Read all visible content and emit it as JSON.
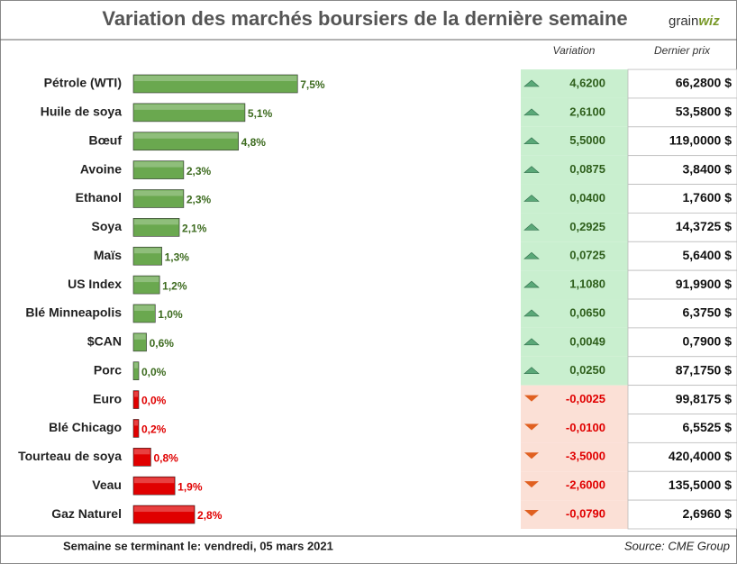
{
  "chart_data": {
    "type": "bar",
    "orientation": "horizontal",
    "title": "Variation des marchés boursiers de la dernière semaine",
    "logo": [
      "grain",
      "wiz"
    ],
    "categories": [
      "Pétrole (WTI)",
      "Huile de soya",
      "Bœuf",
      "Avoine",
      "Ethanol",
      "Soya",
      "Maïs",
      "US Index",
      "Blé Minneapolis",
      "$CAN",
      "Porc",
      "Euro",
      "Blé Chicago",
      "Tourteau de soya",
      "Veau",
      "Gaz Naturel"
    ],
    "values": [
      7.5,
      5.1,
      4.8,
      2.3,
      2.3,
      2.1,
      1.3,
      1.2,
      1.0,
      0.6,
      0.0,
      0.0,
      0.2,
      0.8,
      1.9,
      2.8
    ],
    "value_labels": [
      "7,5%",
      "5,1%",
      "4,8%",
      "2,3%",
      "2,3%",
      "2,1%",
      "1,3%",
      "1,2%",
      "1,0%",
      "0,6%",
      "0,0%",
      "0,0%",
      "0,2%",
      "0,8%",
      "1,9%",
      "2,8%"
    ],
    "colors": [
      "#6aa84f",
      "#6aa84f",
      "#6aa84f",
      "#6aa84f",
      "#6aa84f",
      "#6aa84f",
      "#6aa84f",
      "#6aa84f",
      "#6aa84f",
      "#6aa84f",
      "#6aa84f",
      "#e00000",
      "#e00000",
      "#e00000",
      "#e00000",
      "#e00000"
    ],
    "xlim": [
      0,
      10
    ]
  },
  "table": {
    "columns": [
      "Variation",
      "Dernier prix"
    ],
    "rows": [
      [
        "4,6200",
        "66,2800 $"
      ],
      [
        "2,6100",
        "53,5800 $"
      ],
      [
        "5,5000",
        "119,0000 $"
      ],
      [
        "0,0875",
        "3,8400 $"
      ],
      [
        "0,0400",
        "1,7600 $"
      ],
      [
        "0,2925",
        "14,3725 $"
      ],
      [
        "0,0725",
        "5,6400 $"
      ],
      [
        "1,1080",
        "91,9900 $"
      ],
      [
        "0,0650",
        "6,3750 $"
      ],
      [
        "0,0049",
        "0,7900 $"
      ],
      [
        "0,0250",
        "87,1750 $"
      ],
      [
        "-0,0025",
        "99,8175 $"
      ],
      [
        "-0,0100",
        "6,5525 $"
      ],
      [
        "-3,5000",
        "420,4000 $"
      ],
      [
        "-2,6000",
        "135,5000 $"
      ],
      [
        "-0,0790",
        "2,6960 $"
      ]
    ]
  },
  "footer": {
    "left": "Semaine se terminant le:  vendredi, 05 mars 2021",
    "right": "Source: CME Group"
  }
}
